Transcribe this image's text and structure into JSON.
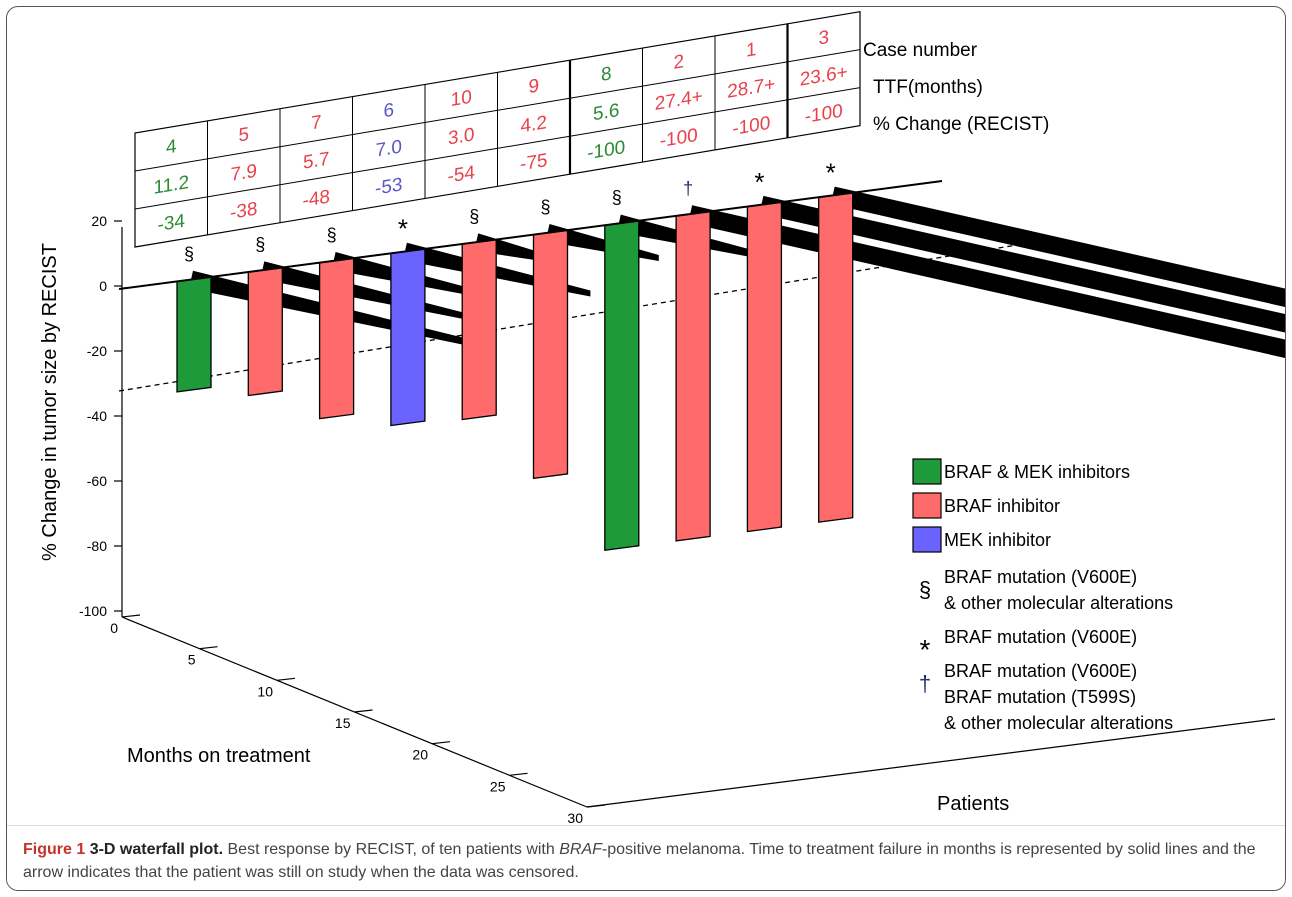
{
  "chart_data": {
    "type": "bar",
    "title": "",
    "ylabel": "% Change in tumor size by RECIST",
    "xlabel": "Patients",
    "zlabel": "Months on treatment",
    "ylim": [
      -100,
      20
    ],
    "yticks": [
      20,
      0,
      -20,
      -40,
      -60,
      -80,
      -100
    ],
    "ytick_labels": [
      "20",
      "0",
      "-20",
      "-40",
      "-60",
      "-80",
      "-100"
    ],
    "zlim": [
      0,
      30
    ],
    "zticks": [
      0,
      5,
      10,
      15,
      20,
      25,
      30
    ],
    "ztick_labels": [
      "0",
      "5",
      "10",
      "15",
      "20",
      "25",
      "30"
    ],
    "table_row_labels": [
      "Case number",
      "TTF(months)",
      "% Change (RECIST)"
    ],
    "patients": [
      {
        "case": "4",
        "ttf_label": "11.2",
        "change_label": "-34",
        "change": -34,
        "ttf": 11.2,
        "treatment": "braf_mek",
        "marker": "§",
        "censored": false
      },
      {
        "case": "5",
        "ttf_label": "7.9",
        "change_label": "-38",
        "change": -38,
        "ttf": 7.9,
        "treatment": "braf",
        "marker": "§",
        "censored": false
      },
      {
        "case": "7",
        "ttf_label": "5.7",
        "change_label": "-48",
        "change": -48,
        "ttf": 5.7,
        "treatment": "braf",
        "marker": "§",
        "censored": false
      },
      {
        "case": "6",
        "ttf_label": "7.0",
        "change_label": "-53",
        "change": -53,
        "ttf": 7.0,
        "treatment": "mek",
        "marker": "*",
        "censored": false
      },
      {
        "case": "10",
        "ttf_label": "3.0",
        "change_label": "-54",
        "change": -54,
        "ttf": 3.0,
        "treatment": "braf",
        "marker": "§",
        "censored": false
      },
      {
        "case": "9",
        "ttf_label": "4.2",
        "change_label": "-75",
        "change": -75,
        "ttf": 4.2,
        "treatment": "braf",
        "marker": "§",
        "censored": false
      },
      {
        "case": "8",
        "ttf_label": "5.6",
        "change_label": "-100",
        "change": -100,
        "ttf": 5.6,
        "treatment": "braf_mek",
        "marker": "§",
        "censored": false
      },
      {
        "case": "2",
        "ttf_label": "27.4+",
        "change_label": "-100",
        "change": -100,
        "ttf": 27.4,
        "treatment": "braf",
        "marker": "†",
        "censored": true
      },
      {
        "case": "1",
        "ttf_label": "28.7+",
        "change_label": "-100",
        "change": -100,
        "ttf": 28.7,
        "treatment": "braf",
        "marker": "*",
        "censored": true
      },
      {
        "case": "3",
        "ttf_label": "23.6+",
        "change_label": "-100",
        "change": -100,
        "ttf": 23.6,
        "treatment": "braf",
        "marker": "*",
        "censored": true
      }
    ],
    "treatments": {
      "braf_mek": {
        "label": "BRAF & MEK inhibitors",
        "color": "#1f9a3a",
        "text_color": "#2a8a35"
      },
      "braf": {
        "label": "BRAF inhibitor",
        "color": "#ff6b6b",
        "text_color": "#e8414b"
      },
      "mek": {
        "label": "MEK inhibitor",
        "color": "#6a63ff",
        "text_color": "#5a57c8"
      }
    },
    "marker_legend": [
      {
        "symbol": "§",
        "lines": [
          "BRAF mutation (V600E)",
          "& other molecular alterations"
        ]
      },
      {
        "symbol": "*",
        "lines": [
          "BRAF mutation (V600E)"
        ]
      },
      {
        "symbol": "†",
        "lines": [
          "BRAF mutation (V600E)",
          "BRAF mutation (T599S)",
          "& other molecular alterations"
        ]
      }
    ],
    "legend_position": "right"
  },
  "caption": {
    "label": "Figure 1",
    "title": "3-D waterfall plot.",
    "text_before": " Best response by RECIST, of ten patients with ",
    "italic": "BRAF",
    "text_after": "-positive melanoma. Time to treatment failure in months is represented by solid lines and the arrow indicates that the patient was still on study when the data was censored."
  }
}
